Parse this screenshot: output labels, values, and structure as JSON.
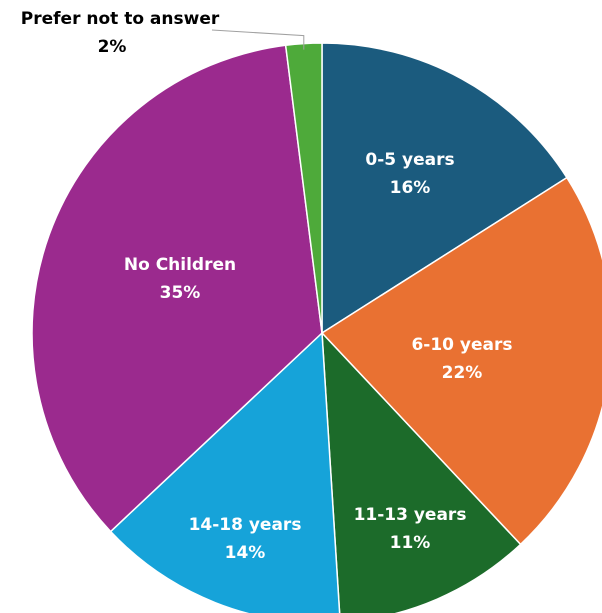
{
  "chart_data": {
    "type": "pie",
    "title": "",
    "slices": [
      {
        "name": "0-5 years",
        "value": 16,
        "label": "16%",
        "color": "#1b5b7e"
      },
      {
        "name": "6-10 years",
        "value": 22,
        "label": "22%",
        "color": "#e97132"
      },
      {
        "name": "11-13 years",
        "value": 11,
        "label": "11%",
        "color": "#1c6b2a"
      },
      {
        "name": "14-18 years",
        "value": 14,
        "label": "14%",
        "color": "#16a3d9"
      },
      {
        "name": "No Children",
        "value": 35,
        "label": "35%",
        "color": "#9b2a8e"
      },
      {
        "name": "Prefer not to answer",
        "value": 2,
        "label": "2%",
        "color": "#4eaa3a"
      }
    ],
    "label_color_inside": "#ffffff",
    "label_color_outside": "#000000"
  }
}
